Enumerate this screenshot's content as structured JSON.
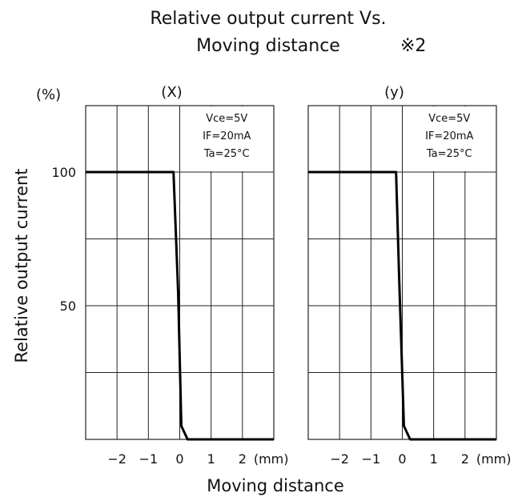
{
  "title_line1": "Relative output current Vs.",
  "title_line2": "Moving distance",
  "note_mark": "※2",
  "ylabel": "Relative output current",
  "yunit": "(%)",
  "xlabel": "Moving distance",
  "chart_data": [
    {
      "type": "line",
      "panel_label": "(X)",
      "xunit": "(mm)",
      "xlim": [
        -3,
        3
      ],
      "ylim": [
        0,
        100
      ],
      "x_ticks": [
        -2,
        -1,
        0,
        1,
        2
      ],
      "x_tick_labels": [
        "−2",
        "−1",
        "0",
        "1",
        "2"
      ],
      "y_ticks": [
        50,
        100
      ],
      "y_tick_labels": [
        "50",
        "100"
      ],
      "conditions": [
        "Vce=5V",
        "IF=20mA",
        "Ta=25°C"
      ],
      "series": [
        {
          "x": [
            -3,
            -0.2,
            -0.05,
            0.05,
            0.25,
            3
          ],
          "y": [
            100,
            100,
            55,
            5,
            0,
            0
          ]
        }
      ]
    },
    {
      "type": "line",
      "panel_label": "(y)",
      "xunit": "(mm)",
      "xlim": [
        -3,
        3
      ],
      "ylim": [
        0,
        100
      ],
      "x_ticks": [
        -2,
        -1,
        0,
        1,
        2
      ],
      "x_tick_labels": [
        "−2",
        "−1",
        "0",
        "1",
        "2"
      ],
      "y_ticks": [
        50,
        100
      ],
      "y_tick_labels": [],
      "conditions": [
        "Vce=5V",
        "IF=20mA",
        "Ta=25°C"
      ],
      "series": [
        {
          "x": [
            -3,
            -0.2,
            -0.1,
            0.05,
            0.25,
            3
          ],
          "y": [
            100,
            100,
            60,
            5,
            0,
            0
          ]
        }
      ]
    }
  ]
}
